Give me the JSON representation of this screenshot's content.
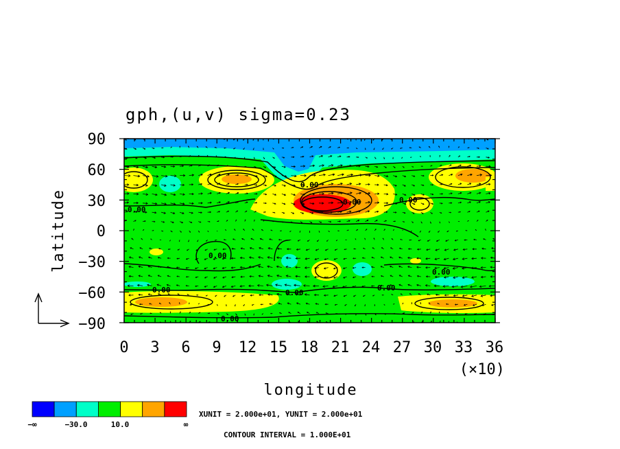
{
  "chart_data": {
    "type": "heatmap",
    "title": "gph,(u,v) sigma=0.23",
    "xlabel": "longitude",
    "ylabel": "latitude",
    "x_scale_note": "(×10)",
    "xticks": [
      "0",
      "3",
      "6",
      "9",
      "12",
      "15",
      "18",
      "21",
      "24",
      "27",
      "30",
      "33",
      "36"
    ],
    "yticks": [
      "90",
      "60",
      "30",
      "0",
      "−30",
      "−60",
      "−90"
    ],
    "xlim": [
      0,
      36
    ],
    "ylim": [
      -90,
      90
    ],
    "contour_labels": [
      "0.00",
      "0.00",
      "0.00",
      "0.00",
      "0.00",
      "0.00",
      "0.00",
      "0.00",
      "0.00",
      "0.00"
    ],
    "shade_levels": {
      "colors": [
        "#0000ff",
        "#00a0ff",
        "#00ffc8",
        "#00ee00",
        "#ffff00",
        "#ffa500",
        "#ff0000"
      ],
      "labels": [
        "−∞",
        "−30.0",
        "10.0",
        "∞"
      ]
    },
    "unit_note": "XUNIT = 2.000e+01, YUNIT = 2.000e+01",
    "contour_interval": "CONTOUR INTERVAL = 1.000E+01"
  }
}
